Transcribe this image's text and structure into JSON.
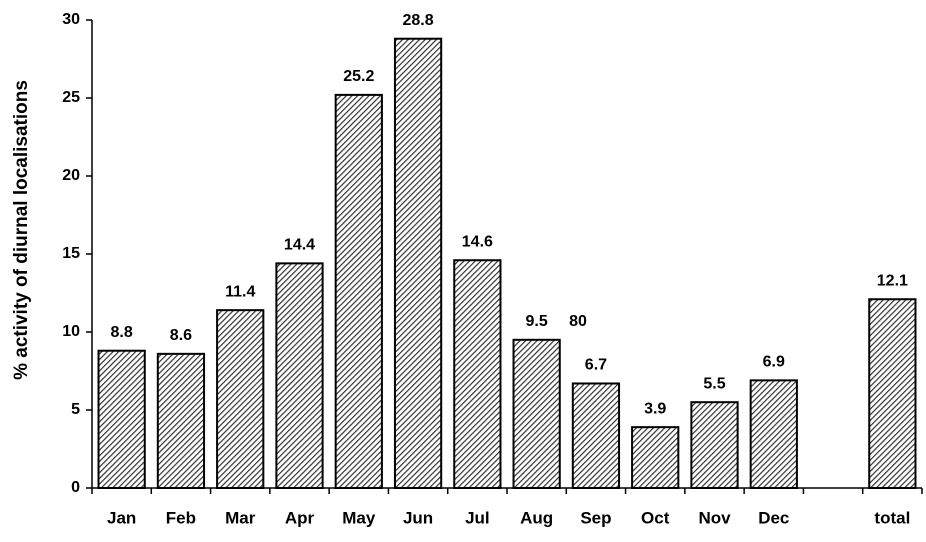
{
  "chart_data": {
    "type": "bar",
    "y_label": "% activity of diurnal localisations",
    "categories": [
      "Jan",
      "Feb",
      "Mar",
      "Apr",
      "May",
      "Jun",
      "Jul",
      "Aug",
      "Sep",
      "Oct",
      "Nov",
      "Dec",
      null,
      "total"
    ],
    "values": [
      8.8,
      8.6,
      11.4,
      14.4,
      25.2,
      28.8,
      14.6,
      9.5,
      6.7,
      3.9,
      5.5,
      6.9,
      null,
      12.1
    ],
    "annotations": [
      "80"
    ],
    "color": "#555555",
    "ylim": [
      0,
      30
    ],
    "yticks": [
      0,
      5,
      10,
      15,
      20,
      25,
      30
    ],
    "grid": false
  }
}
